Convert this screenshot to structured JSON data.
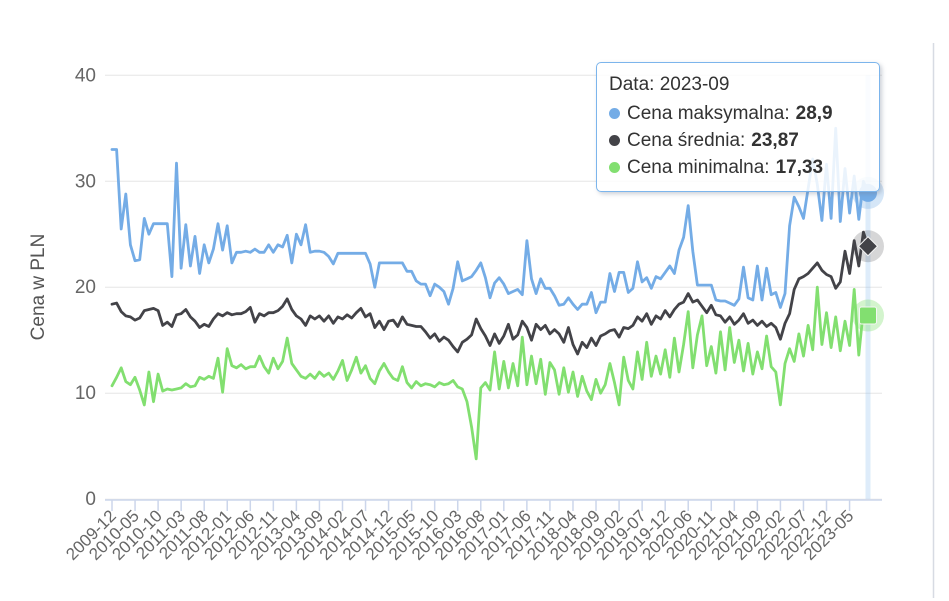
{
  "chart_data": {
    "type": "line",
    "title": "",
    "xlabel": "",
    "ylabel": "Cena w PLN",
    "ylim": [
      0,
      40
    ],
    "y_ticks": [
      0,
      10,
      20,
      30,
      40
    ],
    "grid": "horizontal",
    "legend": "none",
    "x_start": "2009-12",
    "x_end": "2023-09",
    "x_skip": [
      "2020-04"
    ],
    "x_tick_every": 5,
    "x_tick_labels": [
      "2009-12",
      "2010-05",
      "2010-10",
      "2011-03",
      "2011-08",
      "2012-01",
      "2012-06",
      "2012-11",
      "2013-04",
      "2013-09",
      "2014-02",
      "2014-07",
      "2014-12",
      "2015-05",
      "2015-10",
      "2016-03",
      "2016-08",
      "2017-01",
      "2017-06",
      "2017-11",
      "2018-04",
      "2018-09",
      "2019-02",
      "2019-07",
      "2019-12",
      "2020-06",
      "2020-11",
      "2021-04",
      "2021-09",
      "2022-02",
      "2022-07",
      "2022-12",
      "2023-05"
    ],
    "series": [
      {
        "key": "max",
        "name": "Cena maksymalna",
        "color": "#74ace6",
        "marker": "circle",
        "values": [
          33,
          33,
          25.5,
          28.8,
          24,
          22.5,
          22.6,
          26.5,
          25,
          26,
          26,
          26,
          26,
          21,
          31.7,
          21.8,
          25.9,
          22,
          24.8,
          21.3,
          24,
          22.3,
          23.6,
          26,
          23.5,
          25.8,
          22.3,
          23.3,
          23.3,
          23.4,
          23.3,
          23.6,
          23.3,
          23.3,
          24,
          23.3,
          24,
          23.8,
          24.9,
          22.3,
          25,
          24,
          25.9,
          23.3,
          23.4,
          23.4,
          23.3,
          22.9,
          22.2,
          23.2,
          23.2,
          23.2,
          23.2,
          23.2,
          23.2,
          23.2,
          22.2,
          20,
          22.3,
          22.3,
          22.3,
          22.3,
          22.3,
          22.3,
          21.5,
          21.5,
          20.6,
          20.3,
          20.3,
          19.2,
          20.3,
          20,
          19.6,
          18.4,
          19.9,
          22.4,
          20.6,
          20.8,
          21,
          21.6,
          22.3,
          20.9,
          19,
          20.4,
          20.9,
          20.3,
          19.4,
          19.6,
          19.8,
          19.3,
          24.4,
          20.8,
          19.4,
          20.8,
          19.9,
          19.9,
          19.2,
          18.3,
          18.4,
          19,
          18.4,
          17.9,
          18.4,
          18.4,
          19.5,
          17.6,
          18.6,
          18.6,
          21.3,
          19.6,
          21.4,
          21.4,
          19.5,
          19.9,
          22.4,
          20.5,
          20.9,
          19.9,
          21,
          20.8,
          21.4,
          22,
          21.3,
          23.5,
          24.7,
          27.7,
          23.4,
          20.2,
          20.2,
          20.2,
          20.2,
          18.8,
          18.7,
          18.7,
          18.5,
          18.3,
          18.9,
          21.9,
          19,
          18.8,
          22,
          18.8,
          21.8,
          19.3,
          19.5,
          18.1,
          19.4,
          25.8,
          28.5,
          27.6,
          26.5,
          29.3,
          32.1,
          29.7,
          26.3,
          31.6,
          26.5,
          35,
          26.2,
          31.2,
          27,
          30.5,
          26.4,
          30,
          28.9
        ]
      },
      {
        "key": "avg",
        "name": "Cena średnia",
        "color": "#434348",
        "marker": "diamond",
        "values": [
          18.4,
          18.5,
          17.7,
          17.3,
          17.2,
          16.9,
          17.1,
          17.8,
          17.9,
          18,
          17.8,
          16.4,
          16.7,
          16.3,
          17.4,
          17.5,
          17.9,
          17.2,
          16.8,
          16.2,
          16.5,
          16.3,
          17,
          17.5,
          17.3,
          17.6,
          17.4,
          17.5,
          17.5,
          17.7,
          18.1,
          16.7,
          17.5,
          17.3,
          17.6,
          17.6,
          17.8,
          18.2,
          18.9,
          17.9,
          17.3,
          17,
          16.4,
          17.3,
          17,
          17.3,
          16.8,
          17.3,
          16.6,
          17.2,
          17,
          17.4,
          17.1,
          17.6,
          18,
          17.2,
          17.5,
          16.2,
          16.8,
          16,
          16.8,
          16.9,
          16.3,
          17.2,
          16.5,
          16.4,
          16.3,
          16.3,
          15.8,
          15.2,
          15.6,
          14.9,
          15.3,
          15,
          14.4,
          13.9,
          14.8,
          15.1,
          15.5,
          17,
          16.1,
          15.4,
          14.5,
          15.6,
          14.7,
          15.4,
          16.5,
          15.1,
          15.5,
          16.8,
          16.2,
          15,
          16.5,
          16,
          16.4,
          15.6,
          16,
          15.6,
          14.8,
          16.2,
          14.6,
          13.7,
          14.8,
          14.3,
          15.2,
          14.5,
          15.4,
          15.6,
          15.9,
          16,
          15.3,
          16.2,
          16.1,
          16.4,
          17.2,
          16.8,
          17.5,
          16.5,
          17.3,
          17,
          17.8,
          17.2,
          17.9,
          18.4,
          18.6,
          19.4,
          18.6,
          18.8,
          18.2,
          17.6,
          18.3,
          17.4,
          17.3,
          16.7,
          17.2,
          16.5,
          16.9,
          17.5,
          16.6,
          16.9,
          16.4,
          16.8,
          16.3,
          16.6,
          16.2,
          15.1,
          16.6,
          17.5,
          19.8,
          20.8,
          21,
          21.3,
          21.8,
          22.3,
          21.6,
          21.2,
          21,
          19.9,
          20.5,
          23.4,
          21.3,
          24.4,
          22,
          25.2,
          23.87
        ]
      },
      {
        "key": "min",
        "name": "Cena minimalna",
        "color": "#82df70",
        "marker": "square",
        "values": [
          10.7,
          11.5,
          12.4,
          11.1,
          10.8,
          11.5,
          10.3,
          8.9,
          12,
          9.2,
          11.8,
          10.2,
          10.4,
          10.3,
          10.4,
          10.5,
          10.9,
          10.6,
          10.7,
          11.5,
          11.3,
          11.6,
          11.4,
          13.3,
          10.1,
          14.2,
          12.6,
          12.4,
          12.7,
          12.3,
          12.5,
          12.5,
          13.5,
          12.5,
          11.9,
          13.3,
          12.3,
          13,
          15.2,
          12.8,
          12.2,
          11.6,
          11.4,
          11.8,
          11.4,
          12,
          11.6,
          11.9,
          11.3,
          12.1,
          13.1,
          11.2,
          12.2,
          13.4,
          11.9,
          12.6,
          11.4,
          10.9,
          12.1,
          12.8,
          12,
          11.4,
          11.2,
          12.5,
          11,
          10.5,
          11.1,
          10.7,
          10.9,
          10.8,
          10.6,
          11,
          10.8,
          10.9,
          11.2,
          10.6,
          10.4,
          9.2,
          6.8,
          3.8,
          10.5,
          11,
          10.3,
          13.9,
          10.4,
          13,
          10.5,
          12.8,
          10.7,
          15.3,
          10.8,
          13.5,
          10.9,
          13.2,
          9.9,
          12.9,
          12.2,
          9.9,
          12.4,
          10.1,
          12,
          9.7,
          11.6,
          10.2,
          9.4,
          11.3,
          10,
          10.8,
          12.8,
          11,
          8.9,
          13.4,
          11.2,
          10.4,
          13.9,
          11.3,
          14.8,
          11.6,
          13.5,
          11.8,
          14.1,
          11.5,
          15.2,
          12,
          14.6,
          17.7,
          12.4,
          15.5,
          17.3,
          12.6,
          14.4,
          11.9,
          15.8,
          12.2,
          16.2,
          12.9,
          15,
          12.1,
          14.7,
          11.8,
          13.9,
          12.3,
          15.4,
          12.5,
          12,
          8.9,
          12.8,
          14.2,
          13,
          15.6,
          13.5,
          16.4,
          14.1,
          20,
          14.6,
          17.6,
          14.3,
          17.2,
          14,
          16.8,
          14.5,
          19.8,
          13.6,
          17.9,
          17.33
        ]
      }
    ]
  },
  "tooltip": {
    "header": "Data: 2023-09",
    "rows": [
      {
        "label": "Cena maksymalna:",
        "value": "28,9",
        "color": "#74ace6"
      },
      {
        "label": "Cena średnia:",
        "value": "23,87",
        "color": "#434348"
      },
      {
        "label": "Cena minimalna:",
        "value": "17,33",
        "color": "#82df70"
      }
    ]
  },
  "style": {
    "gridline_color": "#e6e6e6",
    "axis_color": "#ccd6eb",
    "label_color": "#666666",
    "title_color": "#555555",
    "crosshair_color": "rgba(124,181,236,0.25)",
    "divider_color": "#d7dbe3"
  }
}
